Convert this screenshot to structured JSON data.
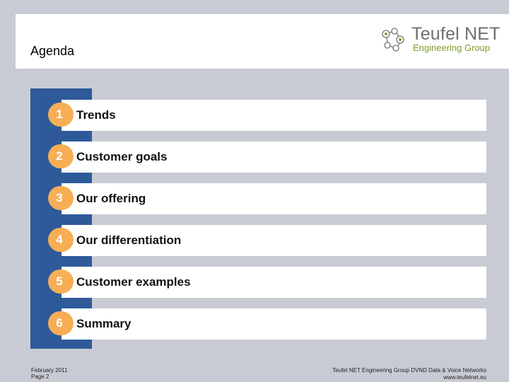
{
  "slide": {
    "title": "Agenda"
  },
  "logo": {
    "name_line1": "Teufel NET",
    "name_line2": "Engineering Group",
    "icon": "network-nodes-icon",
    "colors": {
      "text": "#6e6e72",
      "accent": "#7a9e2a"
    }
  },
  "agenda": {
    "items": [
      {
        "number": "1",
        "label": "Trends"
      },
      {
        "number": "2",
        "label": "Customer goals"
      },
      {
        "number": "3",
        "label": "Our offering"
      },
      {
        "number": "4",
        "label": "Our differentiation"
      },
      {
        "number": "5",
        "label": "Customer examples"
      },
      {
        "number": "6",
        "label": "Summary"
      }
    ],
    "colors": {
      "bar": "#2e5a9a",
      "number_badge": "#f7ae55"
    }
  },
  "footer": {
    "date": "February 2011",
    "page": "Page 2",
    "company_line": "Teufel NET Engineering Group   DVND Data & Voice Networks",
    "website": "www.teufelnet.eu"
  }
}
